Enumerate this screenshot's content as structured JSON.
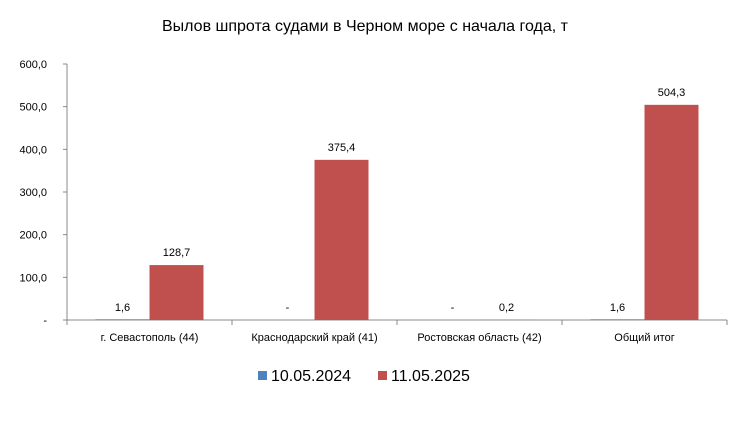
{
  "chart_data": {
    "type": "bar",
    "title": "Вылов шпрота судами в Черном море с начала  года, т",
    "xlabel": "",
    "ylabel": "",
    "ylim": [
      0,
      600
    ],
    "yticks": [
      "-",
      "100,0",
      "200,0",
      "300,0",
      "400,0",
      "500,0",
      "600,0"
    ],
    "categories": [
      "г. Севастополь (44)",
      "Краснодарский край (41)",
      "Ростовская область (42)",
      "Общий итог"
    ],
    "series": [
      {
        "name": "10.05.2024",
        "color": "#4f81bd",
        "values": [
          1.6,
          0,
          0,
          1.6
        ],
        "labels": [
          "1,6",
          "-",
          "-",
          "1,6"
        ]
      },
      {
        "name": "11.05.2025",
        "color": "#c0504d",
        "values": [
          128.7,
          375.4,
          0.2,
          504.3
        ],
        "labels": [
          "128,7",
          "375,4",
          "0,2",
          "504,3"
        ]
      }
    ],
    "grid": false,
    "legend": "bottom"
  }
}
